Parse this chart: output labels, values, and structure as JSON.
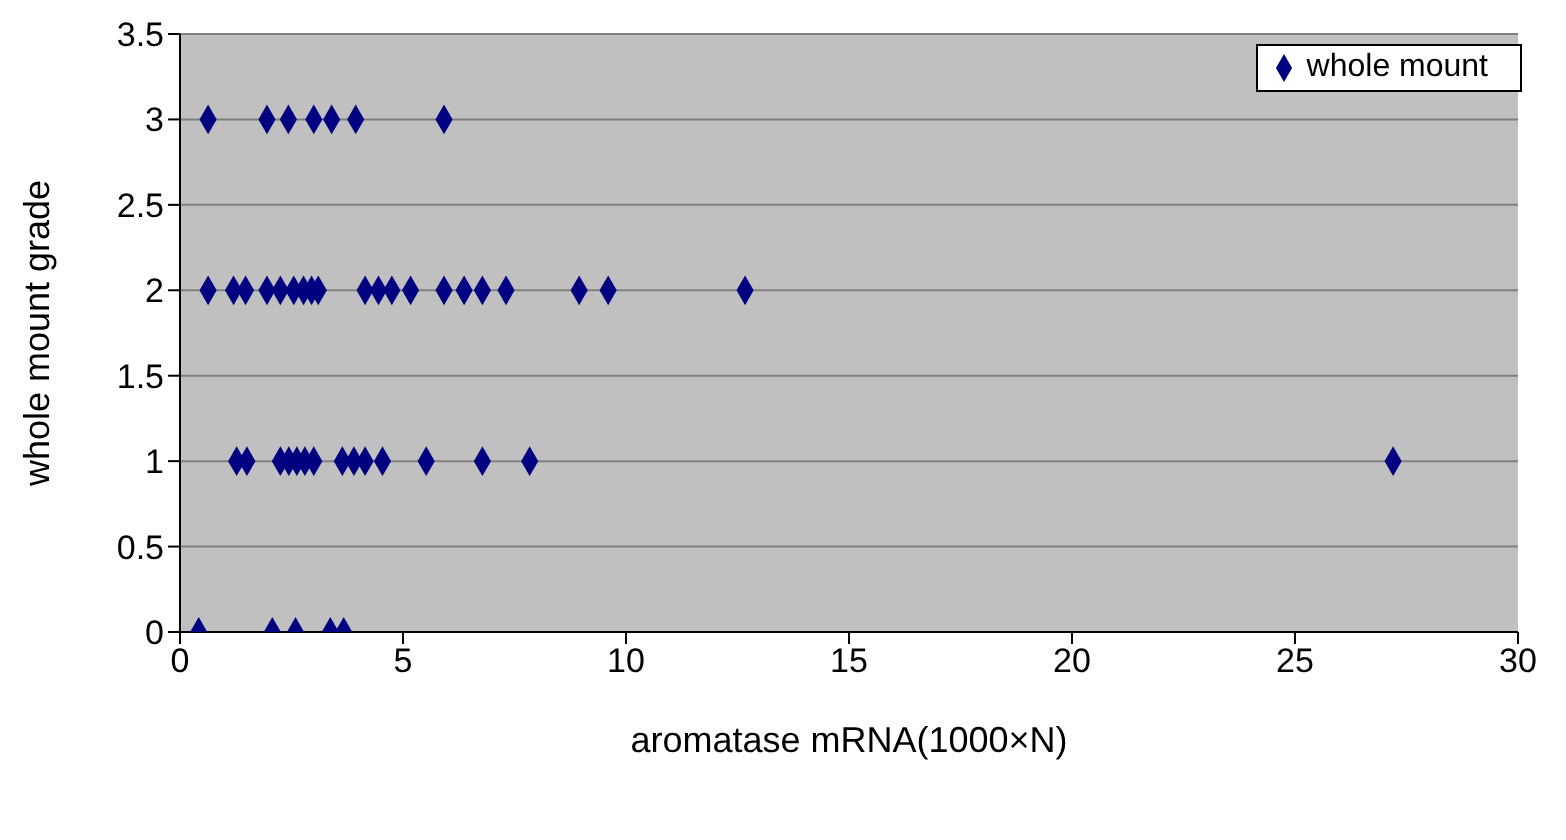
{
  "chart_data": {
    "type": "scatter",
    "xlabel": "aromatase mRNA(1000×N)",
    "ylabel": "whole mount grade",
    "xlim": [
      0,
      30
    ],
    "xticks": [
      0,
      5,
      10,
      15,
      20,
      25,
      30
    ],
    "ylim": [
      0,
      3.5
    ],
    "yticks": [
      0,
      0.5,
      1,
      1.5,
      2,
      2.5,
      3,
      3.5
    ],
    "grid": "y",
    "legend": "top right",
    "marker": "diamond",
    "series": [
      {
        "name": "whole mount",
        "color": "#000080",
        "x": [
          0.63,
          1.95,
          2.43,
          3.0,
          3.4,
          3.94,
          5.92,
          0.63,
          1.2,
          1.47,
          1.95,
          2.25,
          2.55,
          2.77,
          2.95,
          3.1,
          4.15,
          4.45,
          4.75,
          5.17,
          5.92,
          6.37,
          6.78,
          7.31,
          8.95,
          9.6,
          12.67,
          1.27,
          1.5,
          2.25,
          2.44,
          2.62,
          2.8,
          3.0,
          3.64,
          3.9,
          4.15,
          4.54,
          5.52,
          6.78,
          7.84,
          27.2,
          0.42,
          2.07,
          2.59,
          3.37,
          3.67
        ],
        "values": [
          3,
          3,
          3,
          3,
          3,
          3,
          3,
          2,
          2,
          2,
          2,
          2,
          2,
          2,
          2,
          2,
          2,
          2,
          2,
          2,
          2,
          2,
          2,
          2,
          2,
          2,
          2,
          1,
          1,
          1,
          1,
          1,
          1,
          1,
          1,
          1,
          1,
          1,
          1,
          1,
          1,
          1,
          0,
          0,
          0,
          0,
          0
        ]
      }
    ]
  }
}
